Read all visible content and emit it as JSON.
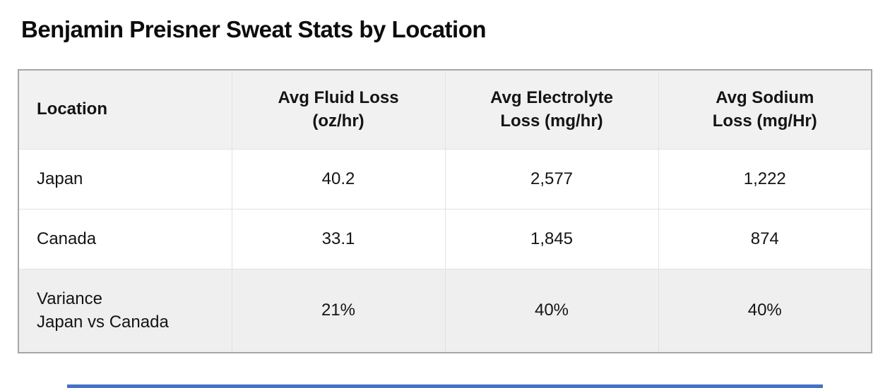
{
  "page": {
    "title": "Benjamin Preisner Sweat Stats by Location"
  },
  "table": {
    "columns": [
      {
        "label": "Location"
      },
      {
        "label": "Avg Fluid Loss (oz/hr)"
      },
      {
        "label": "Avg Electrolyte Loss (mg/hr)"
      },
      {
        "label": "Avg Sodium Loss (mg/Hr)"
      }
    ],
    "rows": [
      {
        "location": "Japan",
        "fluid": "40.2",
        "electrolyte": "2,577",
        "sodium": "1,222"
      },
      {
        "location": "Canada",
        "fluid": "33.1",
        "electrolyte": "1,845",
        "sodium": "874"
      },
      {
        "location": "Variance\nJapan vs Canada",
        "fluid": "21%",
        "electrolyte": "40%",
        "sodium": "40%"
      }
    ]
  },
  "chart_data": {
    "type": "table",
    "title": "Benjamin Preisner Sweat Stats by Location",
    "columns": [
      "Location",
      "Avg Fluid Loss (oz/hr)",
      "Avg Electrolyte Loss (mg/hr)",
      "Avg Sodium Loss (mg/Hr)"
    ],
    "rows": [
      [
        "Japan",
        40.2,
        2577,
        1222
      ],
      [
        "Canada",
        33.1,
        1845,
        874
      ],
      [
        "Variance Japan vs Canada",
        "21%",
        "40%",
        "40%"
      ]
    ]
  },
  "colors": {
    "header_bg": "#f1f1f1",
    "shaded_row_bg": "#efefef",
    "inner_border": "#e2e2e2",
    "outer_border": "#a6a6a6",
    "title_text": "#0c0c0c",
    "body_text": "#141414",
    "cropped_element_blue": "#4472c4"
  }
}
